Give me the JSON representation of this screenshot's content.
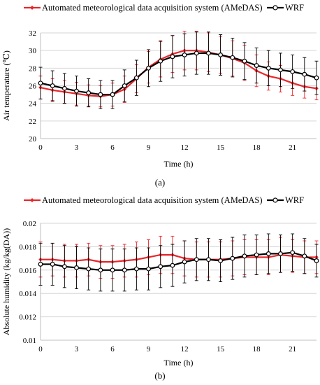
{
  "colors": {
    "ames": "#e8262b",
    "wrf": "#000000",
    "grid": "#d6d6d6",
    "axis": "#bfbfbf"
  },
  "chart_data": [
    {
      "panel": "a",
      "caption": "(a)",
      "type": "line",
      "xlabel": "Time (h)",
      "ylabel": "Air temperature (℃)",
      "xlim": [
        0,
        23
      ],
      "ylim": [
        20,
        32
      ],
      "xticks": [
        0,
        3,
        6,
        9,
        12,
        15,
        18,
        21
      ],
      "yticks": [
        20,
        22,
        24,
        26,
        28,
        30,
        32
      ],
      "grid": true,
      "legend": "top",
      "x": [
        0,
        1,
        2,
        3,
        4,
        5,
        6,
        7,
        8,
        9,
        10,
        11,
        12,
        13,
        14,
        15,
        16,
        17,
        18,
        19,
        20,
        21,
        22,
        23
      ],
      "series": [
        {
          "name": "Automated meteorological data acquisition system (AMeDAS)",
          "color": "#e8262b",
          "marker": "diamond",
          "values": [
            25.8,
            25.5,
            25.3,
            25.1,
            24.9,
            24.8,
            25.0,
            25.6,
            26.8,
            28.1,
            29.0,
            29.6,
            30.0,
            30.0,
            29.8,
            29.5,
            29.1,
            28.6,
            27.7,
            27.1,
            26.8,
            26.3,
            25.9,
            25.7
          ],
          "error": [
            1.3,
            1.3,
            1.3,
            1.3,
            1.2,
            1.2,
            1.3,
            1.5,
            1.6,
            1.8,
            2.0,
            2.1,
            2.2,
            2.2,
            2.2,
            2.1,
            2.0,
            2.0,
            1.8,
            1.6,
            1.5,
            1.4,
            1.3,
            1.3
          ]
        },
        {
          "name": "WRF",
          "color": "#000000",
          "marker": "circle",
          "values": [
            26.3,
            26.0,
            25.7,
            25.4,
            25.2,
            25.0,
            25.0,
            26.0,
            26.9,
            28.0,
            28.8,
            29.3,
            29.5,
            29.7,
            29.7,
            29.5,
            29.2,
            28.8,
            28.3,
            28.0,
            27.8,
            27.6,
            27.3,
            26.9
          ],
          "error": [
            1.8,
            1.7,
            1.7,
            1.7,
            1.6,
            1.6,
            1.6,
            1.8,
            2.0,
            2.1,
            2.3,
            2.4,
            2.4,
            2.4,
            2.4,
            2.3,
            2.2,
            2.1,
            2.0,
            2.0,
            1.9,
            1.9,
            1.9,
            1.9
          ]
        }
      ]
    },
    {
      "panel": "b",
      "caption": "(b)",
      "type": "line",
      "xlabel": "Time (h)",
      "ylabel": "Absolute humidity (kg/kg(DA))",
      "xlim": [
        0,
        23
      ],
      "ylim": [
        0.01,
        0.02
      ],
      "xticks": [
        0,
        3,
        6,
        9,
        12,
        15,
        18,
        21
      ],
      "yticks": [
        0.01,
        0.012,
        0.014,
        0.016,
        0.018,
        0.02
      ],
      "yticklabels": [
        "0.01",
        "0.012",
        "0.014",
        "0.016",
        "0.018",
        "0.02"
      ],
      "grid": true,
      "legend": "top",
      "x": [
        0,
        1,
        2,
        3,
        4,
        5,
        6,
        7,
        8,
        9,
        10,
        11,
        12,
        13,
        14,
        15,
        16,
        17,
        18,
        19,
        20,
        21,
        22,
        23
      ],
      "series": [
        {
          "name": "Automated meteorological data acquisition system (AMeDAS)",
          "color": "#e8262b",
          "marker": "diamond",
          "values": [
            0.0169,
            0.0169,
            0.0168,
            0.0168,
            0.0169,
            0.0167,
            0.0167,
            0.0168,
            0.0169,
            0.0171,
            0.0173,
            0.0173,
            0.017,
            0.0169,
            0.0169,
            0.0169,
            0.017,
            0.0171,
            0.0171,
            0.0171,
            0.0173,
            0.0172,
            0.0171,
            0.0171
          ],
          "error": [
            0.0015,
            0.0014,
            0.0014,
            0.0014,
            0.0014,
            0.0014,
            0.0014,
            0.0014,
            0.0015,
            0.0015,
            0.0016,
            0.0016,
            0.0015,
            0.0015,
            0.0015,
            0.0015,
            0.0015,
            0.0015,
            0.0015,
            0.0015,
            0.0015,
            0.0014,
            0.0014,
            0.0014
          ]
        },
        {
          "name": "WRF",
          "color": "#000000",
          "marker": "circle",
          "values": [
            0.0165,
            0.0165,
            0.0163,
            0.0162,
            0.0161,
            0.016,
            0.016,
            0.016,
            0.0161,
            0.0161,
            0.0163,
            0.0164,
            0.0167,
            0.0169,
            0.0169,
            0.0168,
            0.017,
            0.0172,
            0.0173,
            0.0174,
            0.0174,
            0.0175,
            0.0172,
            0.0168
          ],
          "error": [
            0.0018,
            0.0018,
            0.0018,
            0.0018,
            0.0018,
            0.0018,
            0.0018,
            0.0018,
            0.0018,
            0.0018,
            0.0018,
            0.0018,
            0.0018,
            0.0018,
            0.0018,
            0.0018,
            0.0018,
            0.0018,
            0.0017,
            0.0017,
            0.0016,
            0.0016,
            0.0015,
            0.0014
          ]
        }
      ]
    }
  ]
}
